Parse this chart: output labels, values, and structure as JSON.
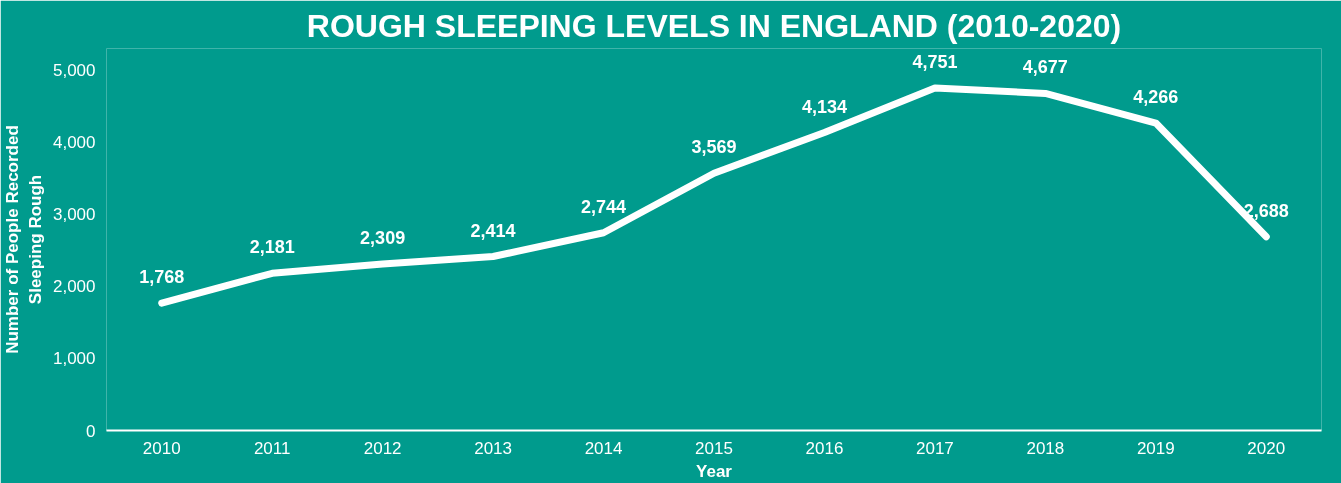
{
  "chart_data": {
    "type": "line",
    "title": "ROUGH SLEEPING LEVELS IN ENGLAND (2010-2020)",
    "xlabel": "Year",
    "ylabel": "Number of People Recorded\nSleeping Rough",
    "categories": [
      "2010",
      "2011",
      "2012",
      "2013",
      "2014",
      "2015",
      "2016",
      "2017",
      "2018",
      "2019",
      "2020"
    ],
    "series": [
      {
        "color": "#ffffff",
        "values": [
          1768,
          2181,
          2309,
          2414,
          2744,
          3569,
          4134,
          4751,
          4677,
          4266,
          2688
        ]
      }
    ],
    "ylim": [
      0,
      5300
    ],
    "yticks": [
      {
        "value": 0,
        "label": "0"
      },
      {
        "value": 1000,
        "label": "1,000"
      },
      {
        "value": 2000,
        "label": "2,000"
      },
      {
        "value": 3000,
        "label": "3,000"
      },
      {
        "value": 4000,
        "label": "4,000"
      },
      {
        "value": 5000,
        "label": "5,000"
      }
    ],
    "value_labels": [
      "1,768",
      "2,181",
      "2,309",
      "2,414",
      "2,744",
      "3,569",
      "4,134",
      "4,751",
      "4,677",
      "4,266",
      "2,688"
    ],
    "grid": false,
    "marker": "none",
    "line_style": "solid"
  }
}
